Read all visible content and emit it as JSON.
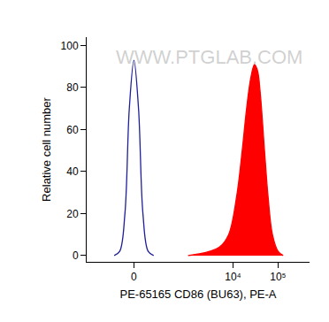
{
  "chart_data": {
    "type": "histogram",
    "x_label": "PE-65165 CD86 (BU63), PE-A",
    "y_label": "Relative cell number",
    "annotations": [
      {
        "text": "WWW.PTGLAB.COM"
      }
    ],
    "series": [
      {
        "type": "line",
        "color": "#1f1f9a",
        "x": [
          -150,
          -100,
          -60,
          -30,
          0,
          30,
          60,
          100,
          150
        ],
        "values": [
          0,
          2,
          20,
          70,
          93,
          70,
          20,
          2,
          0
        ]
      },
      {
        "type": "area",
        "color": "#ff0000",
        "x": [
          1000,
          2000,
          3000,
          5000,
          8000,
          12000,
          16000,
          20000,
          25000,
          30000,
          35000,
          40000,
          50000,
          60000,
          75000,
          100000,
          130000
        ],
        "values": [
          0,
          1,
          2,
          4,
          10,
          28,
          50,
          70,
          85,
          91,
          88,
          78,
          50,
          28,
          10,
          2,
          0
        ]
      }
    ],
    "xlim": [
      -700,
      500000
    ],
    "xticks": [
      0,
      {
        "value": 10000,
        "label": "10⁴"
      },
      {
        "value": 100000,
        "label": "10⁵"
      }
    ],
    "ylim": [
      -3,
      104
    ],
    "yticks": [
      0,
      20,
      40,
      60,
      80,
      100
    ],
    "grid": false
  }
}
